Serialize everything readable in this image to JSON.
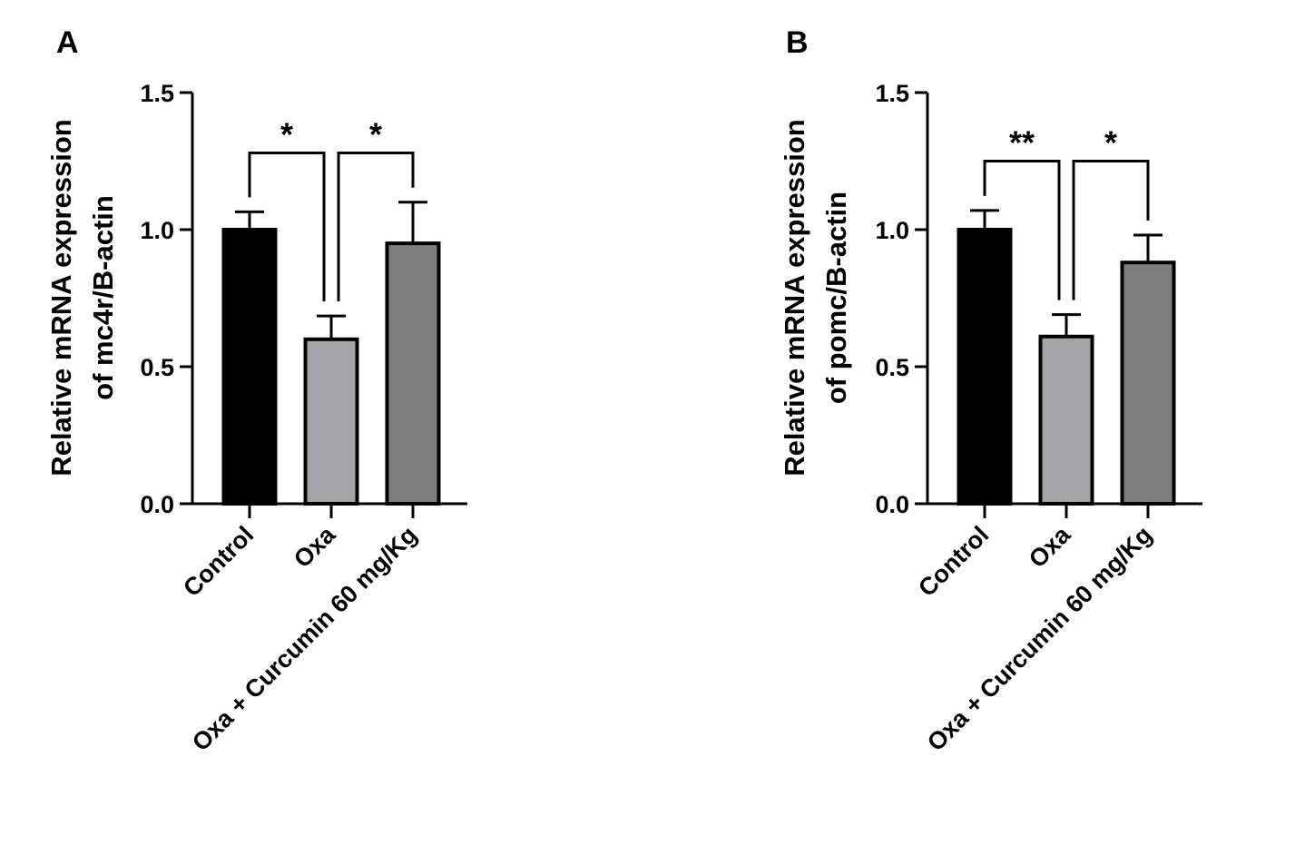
{
  "chart_data": [
    {
      "type": "bar",
      "panel": "A",
      "ylabel_lines": [
        "Relative mRNA expression",
        "of mc4r/B-actin"
      ],
      "categories": [
        "Control",
        "Oxa",
        "Oxa + Curcumin 60 mg/Kg"
      ],
      "values": [
        1.0,
        0.6,
        0.95
      ],
      "errors": [
        0.065,
        0.085,
        0.15
      ],
      "colors": [
        "#000000",
        "#a3a3a8",
        "#7f7f7f"
      ],
      "ylim": [
        0,
        1.5
      ],
      "yticks": [
        "0.0",
        "0.5",
        "1.0",
        "1.5"
      ],
      "significance": [
        {
          "from": 0,
          "to": 1,
          "label": "*",
          "level": 1.28
        },
        {
          "from": 1,
          "to": 2,
          "label": "*",
          "level": 1.28
        }
      ],
      "grid": false,
      "legend": "none"
    },
    {
      "type": "bar",
      "panel": "B",
      "ylabel_lines": [
        "Relative mRNA expression",
        "of pomc/B-actin"
      ],
      "categories": [
        "Control",
        "Oxa",
        "Oxa + Curcumin 60 mg/Kg"
      ],
      "values": [
        1.0,
        0.61,
        0.88
      ],
      "errors": [
        0.07,
        0.08,
        0.1
      ],
      "colors": [
        "#000000",
        "#a3a3a8",
        "#7f7f7f"
      ],
      "ylim": [
        0,
        1.5
      ],
      "yticks": [
        "0.0",
        "0.5",
        "1.0",
        "1.5"
      ],
      "significance": [
        {
          "from": 0,
          "to": 1,
          "label": "**",
          "level": 1.25
        },
        {
          "from": 1,
          "to": 2,
          "label": "*",
          "level": 1.25
        }
      ],
      "grid": false,
      "legend": "none"
    }
  ]
}
